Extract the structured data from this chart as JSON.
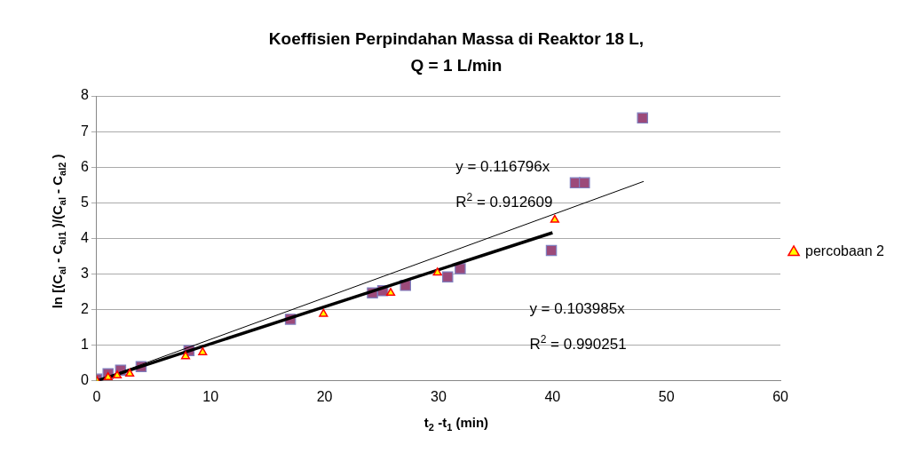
{
  "chart_data": {
    "type": "scatter",
    "title": "Koeffisien Perpindahan Massa di Reaktor 18 L,\nQ = 1 L/min",
    "xlabel": "t$_{2}$ -t$_{1}$ (min)",
    "ylabel": "ln [(C$_{al}$ - C$_{al1}$ )/(C$_{al}$ - C$_{al2}$ )",
    "xlim": [
      0,
      60
    ],
    "xticks": [
      0,
      10,
      20,
      30,
      40,
      50,
      60
    ],
    "ylim": [
      0,
      8
    ],
    "yticks": [
      0,
      1,
      2,
      3,
      4,
      5,
      6,
      7,
      8
    ],
    "grid": "y",
    "legend": "right",
    "series": [
      {
        "type": "scatter",
        "marker": "square",
        "color": "#9c4a7a",
        "x": [
          0,
          1,
          2.1,
          3.9,
          8.1,
          17,
          24.2,
          25.1,
          27.1,
          30.8,
          31.9,
          39.9,
          42,
          42.8,
          47.9
        ],
        "values": [
          0.05,
          0.2,
          0.3,
          0.4,
          0.85,
          1.73,
          2.47,
          2.53,
          2.68,
          2.92,
          3.15,
          3.66,
          5.56,
          5.56,
          7.38
        ]
      },
      {
        "type": "scatter",
        "name": "percobaan 2",
        "marker": "triangle",
        "color": "#ffff00",
        "x": [
          0,
          1,
          1.8,
          2.9,
          7.8,
          9.3,
          19.9,
          25.8,
          29.9,
          40.2
        ],
        "values": [
          0,
          0.1,
          0.15,
          0.2,
          0.69,
          0.8,
          1.88,
          2.47,
          3.04,
          4.52
        ]
      },
      {
        "type": "line",
        "marker": "none",
        "color": "#000000",
        "x": [
          0,
          48
        ],
        "values": [
          0,
          5.6
        ]
      },
      {
        "type": "line",
        "marker": "none",
        "color": "#000000",
        "x": [
          0,
          40
        ],
        "values": [
          0,
          4.16
        ]
      }
    ],
    "annotations": [
      "y = 0.116796x",
      "R$^{2}$ = 0.912609",
      "y = 0.103985x",
      "R$^{2}$ = 0.990251"
    ]
  }
}
